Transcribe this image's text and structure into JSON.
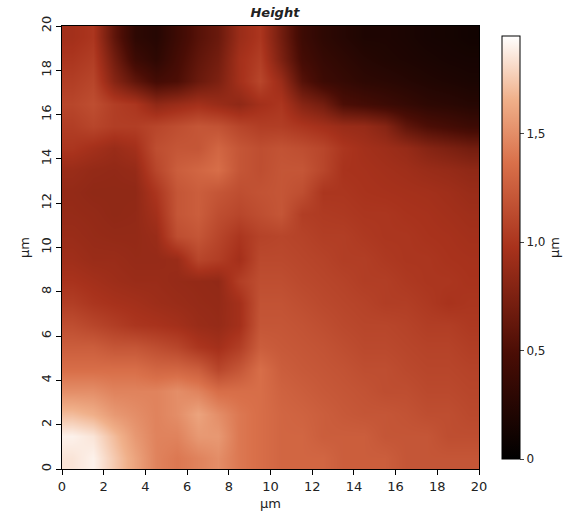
{
  "chart_data": {
    "type": "heatmap",
    "title": "Height",
    "x_label": "µm",
    "y_label": "µm",
    "x": [
      0.5,
      1.5,
      2.5,
      3.5,
      4.5,
      5.5,
      6.5,
      7.5,
      8.5,
      9.5,
      10.5,
      11.5,
      12.5,
      13.5,
      14.5,
      15.5,
      16.5,
      17.5,
      18.5,
      19.5
    ],
    "y": [
      0.5,
      1.5,
      2.5,
      3.5,
      4.5,
      5.5,
      6.5,
      7.5,
      8.5,
      9.5,
      10.5,
      11.5,
      12.5,
      13.5,
      14.5,
      15.5,
      16.5,
      17.5,
      18.5,
      19.5
    ],
    "cells": [
      [
        1.85,
        1.9,
        1.75,
        1.6,
        1.45,
        1.4,
        1.45,
        1.5,
        1.4,
        1.35,
        1.3,
        1.3,
        1.3,
        1.25,
        1.25,
        1.25,
        1.2,
        1.2,
        1.2,
        1.2
      ],
      [
        1.9,
        1.85,
        1.7,
        1.55,
        1.45,
        1.45,
        1.55,
        1.55,
        1.4,
        1.35,
        1.3,
        1.3,
        1.25,
        1.25,
        1.25,
        1.2,
        1.2,
        1.2,
        1.15,
        1.15
      ],
      [
        1.7,
        1.65,
        1.55,
        1.5,
        1.45,
        1.5,
        1.6,
        1.5,
        1.4,
        1.35,
        1.3,
        1.28,
        1.25,
        1.22,
        1.2,
        1.2,
        1.18,
        1.15,
        1.15,
        1.12
      ],
      [
        1.5,
        1.5,
        1.45,
        1.45,
        1.45,
        1.5,
        1.45,
        1.35,
        1.35,
        1.35,
        1.28,
        1.25,
        1.22,
        1.2,
        1.18,
        1.15,
        1.15,
        1.12,
        1.12,
        1.1
      ],
      [
        1.35,
        1.35,
        1.35,
        1.35,
        1.3,
        1.3,
        1.25,
        1.1,
        1.2,
        1.35,
        1.25,
        1.22,
        1.2,
        1.18,
        1.15,
        1.15,
        1.12,
        1.1,
        1.1,
        1.08
      ],
      [
        1.25,
        1.25,
        1.2,
        1.2,
        1.15,
        1.1,
        1.0,
        0.95,
        1.05,
        1.25,
        1.22,
        1.2,
        1.18,
        1.15,
        1.12,
        1.12,
        1.1,
        1.08,
        1.08,
        1.05
      ],
      [
        1.15,
        1.1,
        1.05,
        1.0,
        0.98,
        0.95,
        0.9,
        0.88,
        0.95,
        1.2,
        1.2,
        1.18,
        1.15,
        1.12,
        1.1,
        1.1,
        1.08,
        1.05,
        1.05,
        1.02
      ],
      [
        1.05,
        1.0,
        0.97,
        0.95,
        0.92,
        0.9,
        0.88,
        0.87,
        0.95,
        1.18,
        1.18,
        1.15,
        1.12,
        1.1,
        1.08,
        1.05,
        1.05,
        1.02,
        0.98,
        1.0
      ],
      [
        0.98,
        0.95,
        0.92,
        0.9,
        0.9,
        0.88,
        0.87,
        0.86,
        1.05,
        1.15,
        1.15,
        1.12,
        1.1,
        1.08,
        1.05,
        1.05,
        1.02,
        1.0,
        1.0,
        0.98
      ],
      [
        0.93,
        0.9,
        0.9,
        0.88,
        0.88,
        0.9,
        1.1,
        1.05,
        0.95,
        1.12,
        1.12,
        1.1,
        1.08,
        1.05,
        1.05,
        1.02,
        1.0,
        1.0,
        0.98,
        0.97
      ],
      [
        0.9,
        0.88,
        0.87,
        0.87,
        0.9,
        1.15,
        1.2,
        1.1,
        1.0,
        1.08,
        1.1,
        1.08,
        1.05,
        1.05,
        1.02,
        1.0,
        1.0,
        0.98,
        0.97,
        0.95
      ],
      [
        0.88,
        0.87,
        0.85,
        0.86,
        0.95,
        1.2,
        1.25,
        1.15,
        1.1,
        1.15,
        1.2,
        1.05,
        1.03,
        1.02,
        1.0,
        1.0,
        0.98,
        0.97,
        0.95,
        0.93
      ],
      [
        0.87,
        0.85,
        0.85,
        0.85,
        1.0,
        1.2,
        1.25,
        1.2,
        1.15,
        1.18,
        1.2,
        1.15,
        1.0,
        1.0,
        0.98,
        0.97,
        0.96,
        0.95,
        0.93,
        0.9
      ],
      [
        0.9,
        0.87,
        0.86,
        0.88,
        1.1,
        1.25,
        1.3,
        1.35,
        1.2,
        1.15,
        1.2,
        1.2,
        1.1,
        0.98,
        0.97,
        0.95,
        0.93,
        0.9,
        0.88,
        0.85
      ],
      [
        1.0,
        0.95,
        0.9,
        0.95,
        1.15,
        1.2,
        1.2,
        1.3,
        1.2,
        1.15,
        1.18,
        1.15,
        1.1,
        1.0,
        0.95,
        0.92,
        0.88,
        0.8,
        0.75,
        0.7
      ],
      [
        1.05,
        1.1,
        1.05,
        1.05,
        1.1,
        1.15,
        1.2,
        1.18,
        1.1,
        1.05,
        1.05,
        1.0,
        0.95,
        0.9,
        0.88,
        0.8,
        0.6,
        0.5,
        0.45,
        0.4
      ],
      [
        1.1,
        1.15,
        1.05,
        1.0,
        0.85,
        0.9,
        0.95,
        0.9,
        0.85,
        0.95,
        1.0,
        0.8,
        0.7,
        0.5,
        0.45,
        0.4,
        0.35,
        0.3,
        0.28,
        0.25
      ],
      [
        1.05,
        1.1,
        0.8,
        0.6,
        0.45,
        0.5,
        0.65,
        0.75,
        0.95,
        1.1,
        0.9,
        0.55,
        0.4,
        0.35,
        0.3,
        0.28,
        0.25,
        0.22,
        0.2,
        0.18
      ],
      [
        1.0,
        1.05,
        0.7,
        0.4,
        0.3,
        0.45,
        0.6,
        0.7,
        0.95,
        1.05,
        0.75,
        0.45,
        0.35,
        0.3,
        0.25,
        0.22,
        0.2,
        0.18,
        0.16,
        0.15
      ],
      [
        0.95,
        1.0,
        0.6,
        0.3,
        0.25,
        0.4,
        0.55,
        0.65,
        0.9,
        1.0,
        0.7,
        0.4,
        0.3,
        0.25,
        0.2,
        0.2,
        0.18,
        0.15,
        0.14,
        0.12
      ]
    ],
    "xlim": [
      0,
      20
    ],
    "ylim": [
      0,
      20
    ],
    "xticks": [
      0,
      2,
      4,
      6,
      8,
      10,
      12,
      14,
      16,
      18,
      20
    ],
    "yticks": [
      0,
      2,
      4,
      6,
      8,
      10,
      12,
      14,
      16,
      18,
      20
    ],
    "colorbar_title": "µm",
    "zlim": [
      0,
      1.95
    ],
    "zticks": [
      0,
      {
        "value": 0.5,
        "label": "0,5"
      },
      {
        "value": 1.0,
        "label": "1,0"
      },
      {
        "value": 1.5,
        "label": "1,5"
      }
    ]
  }
}
